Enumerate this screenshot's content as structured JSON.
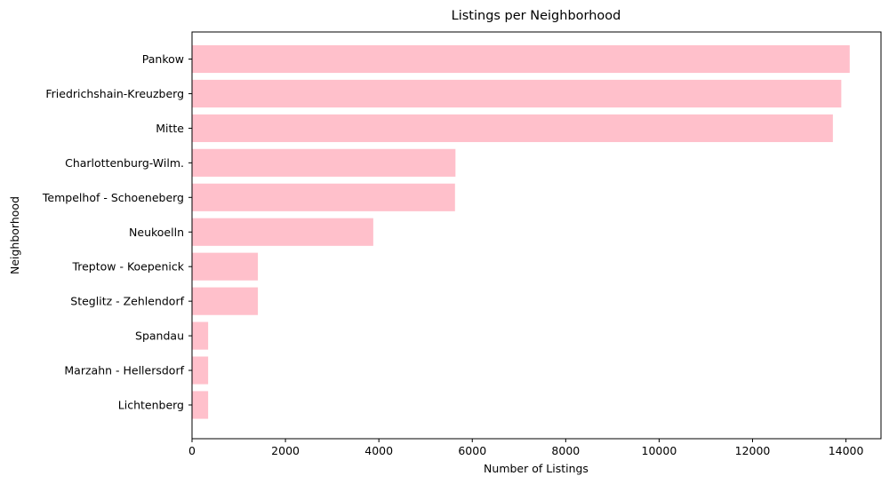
{
  "chart_data": {
    "type": "bar",
    "orientation": "horizontal",
    "title": "Listings per Neighborhood",
    "xlabel": "Number of Listings",
    "ylabel": "Neighborhood",
    "categories": [
      "Pankow",
      "Friedrichshain-Kreuzberg",
      "Mitte",
      "Charlottenburg-Wilm.",
      "Tempelhof - Schoeneberg",
      "Neukoelln",
      "Treptow - Koepenick",
      "Steglitz - Zehlendorf",
      "Spandau",
      "Marzahn - Hellersdorf",
      "Lichtenberg"
    ],
    "values": [
      14080,
      13900,
      13720,
      5640,
      5630,
      3880,
      1410,
      1410,
      345,
      345,
      345
    ],
    "xlim": [
      0,
      14750
    ],
    "xticks": [
      0,
      2000,
      4000,
      6000,
      8000,
      10000,
      12000,
      14000
    ],
    "bar_color": "#ffc0cb",
    "grid": false,
    "legend": "none"
  }
}
